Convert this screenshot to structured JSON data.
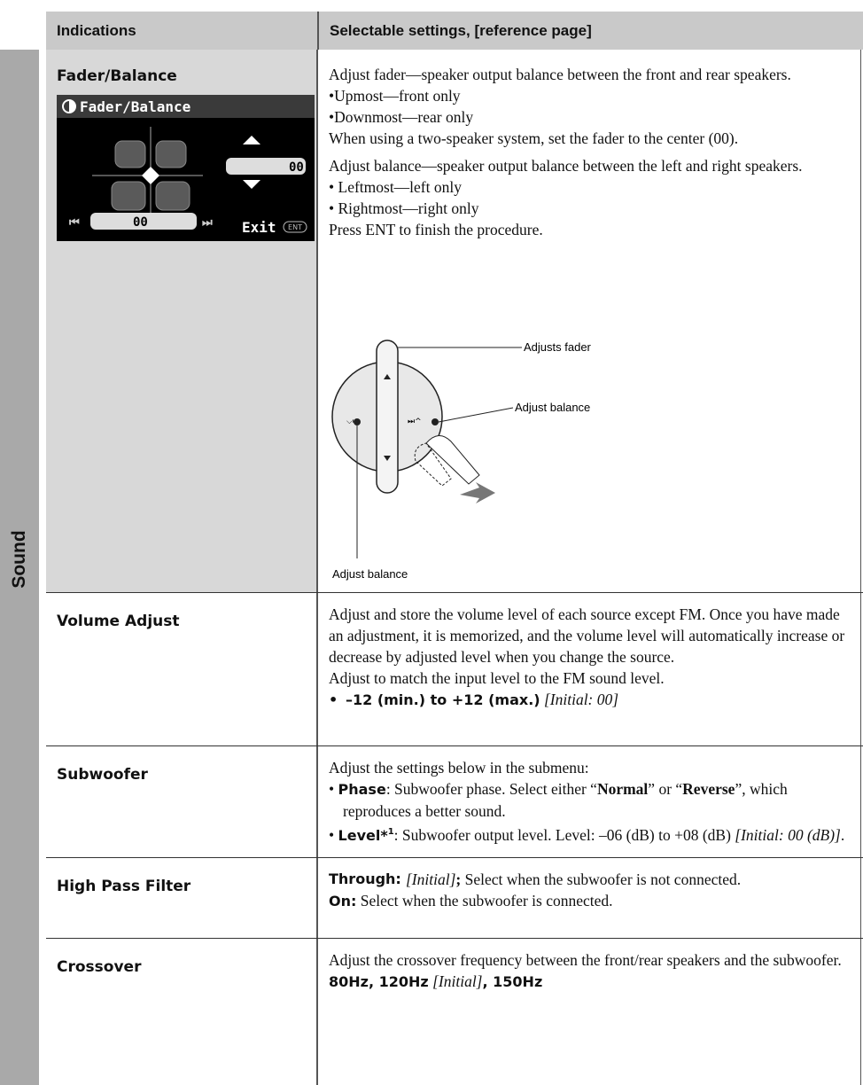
{
  "side_label": "Sound",
  "header": {
    "indications": "Indications",
    "settings": "Selectable settings, [reference page]"
  },
  "rows": [
    {
      "indication": "Fader/Balance",
      "screen": {
        "title": "Fader/Balance",
        "fader_value": "00",
        "balance_value": "00",
        "exit": "Exit",
        "ent": "ENT"
      },
      "settings": {
        "fader_intro": "Adjust fader—speaker output balance between the front and rear speakers.",
        "fader_options": [
          "•Upmost—front only",
          "•Downmost—rear only"
        ],
        "fader_note": "When using a two-speaker system, set the fader to the center (00).",
        "balance_intro": "Adjust balance—speaker output balance between the left and right speakers.",
        "balance_options": [
          "• Leftmost—left only",
          "• Rightmost—right only"
        ],
        "finish": "Press ENT to finish the procedure.",
        "diagram": {
          "fader": "Adjusts fader",
          "balance_right": "Adjust balance",
          "balance_bottom": "Adjust balance"
        }
      }
    },
    {
      "indication": "Volume Adjust",
      "settings": {
        "text": "Adjust and store the volume level of each source except FM. Once you have made an adjustment, it is memorized, and the volume level will automatically increase or decrease by adjusted level when you change the source.",
        "note": "Adjust to match the input level to the FM sound level.",
        "bullet": "•",
        "range": "–12 (min.) to +12 (max.)",
        "initial": "[Initial: 00]"
      }
    },
    {
      "indication": "Subwoofer",
      "settings": {
        "intro": "Adjust the settings below in the submenu:",
        "phase": {
          "bullet": "•",
          "label": "Phase",
          "text1": ": Subwoofer phase. Select either “",
          "normal": "Normal",
          "text2": "” or “",
          "reverse": "Reverse",
          "text3": "”, which reproduces a better sound."
        },
        "level": {
          "bullet": "•",
          "label": "Level*",
          "sup": "1",
          "text": ": Subwoofer output level. Level: –06 (dB) to +08 (dB)",
          "initial": "[Initial: 00 (dB)]",
          "end": "."
        }
      }
    },
    {
      "indication": "High Pass Filter",
      "settings": {
        "through_label": "Through:",
        "through_initial": "[Initial]",
        "through_sep": ";",
        "through_text": "Select when the subwoofer is not connected.",
        "on_label": "On:",
        "on_text": "Select when the subwoofer is connected."
      }
    },
    {
      "indication": "Crossover",
      "settings": {
        "text": "Adjust the crossover frequency between the front/rear speakers and the subwoofer.",
        "options": "80Hz, 120Hz",
        "initial": "[Initial]",
        "last": ", 150Hz"
      }
    }
  ]
}
